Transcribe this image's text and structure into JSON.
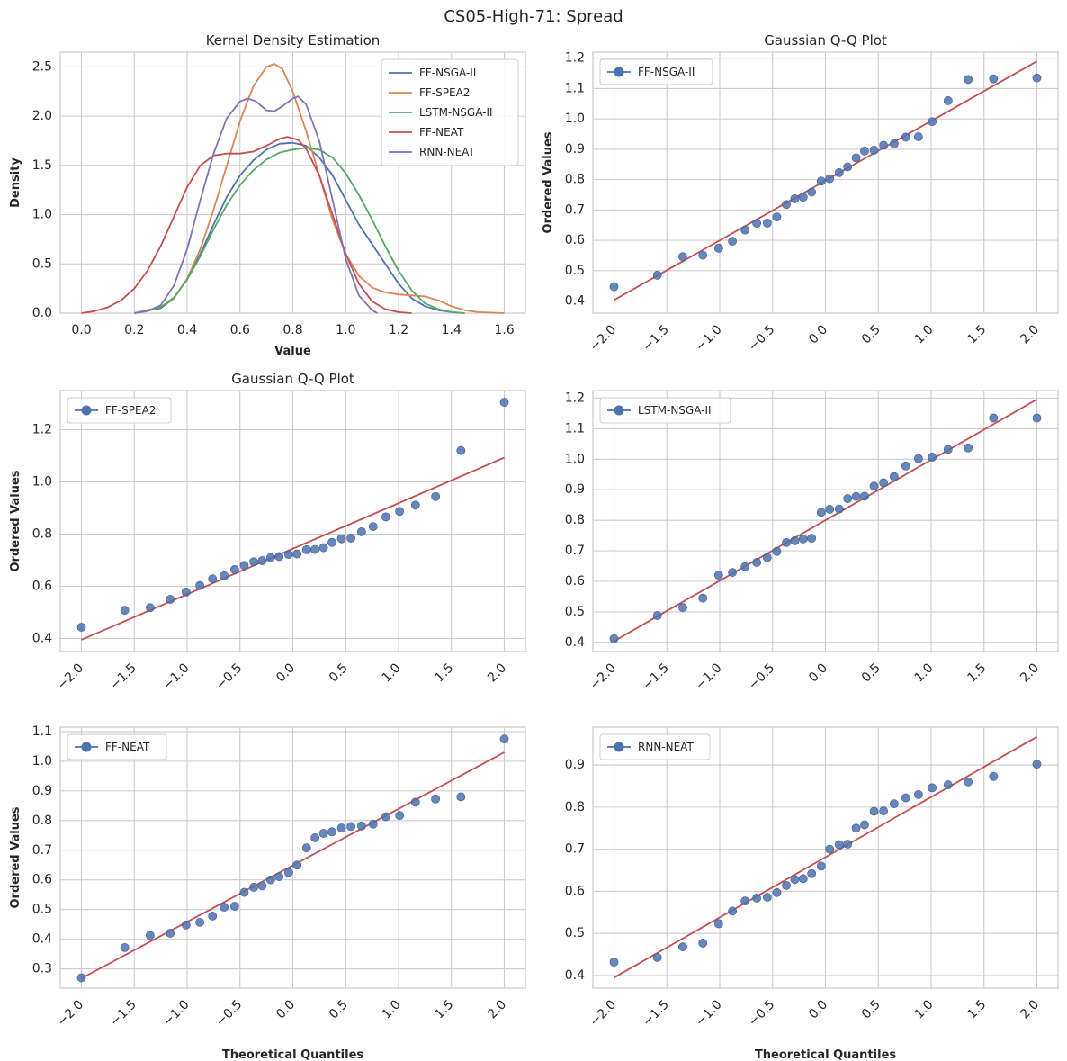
{
  "figure": {
    "title": "CS05-High-71: Spread"
  },
  "colors": {
    "grid": "#cccccc",
    "axis_edge": "#cccccc",
    "text": "#262626",
    "marker": "#4c72b0",
    "marker_edge": "#3d5b8f",
    "fit_line": "#c44e52",
    "legend_border": "#cccccc",
    "background": "#ffffff"
  },
  "chart_data": [
    {
      "id": "kde",
      "type": "line",
      "title": "Kernel Density Estimation",
      "xlabel": "Value",
      "ylabel": "Density",
      "xlim": [
        -0.08,
        1.68
      ],
      "ylim": [
        0,
        2.65
      ],
      "xticks": [
        0.0,
        0.2,
        0.4,
        0.6,
        0.8,
        1.0,
        1.2,
        1.4,
        1.6
      ],
      "xtick_labels": [
        "0.0",
        "0.2",
        "0.4",
        "0.6",
        "0.8",
        "1.0",
        "1.2",
        "1.4",
        "1.6"
      ],
      "yticks": [
        0.0,
        0.5,
        1.0,
        1.5,
        2.0,
        2.5
      ],
      "ytick_labels": [
        "0.0",
        "0.5",
        "1.0",
        "1.5",
        "2.0",
        "2.5"
      ],
      "legend_position": "top-right",
      "series": [
        {
          "name": "FF-NSGA-II",
          "color": "#4c72b0",
          "points": [
            [
              0.2,
              0
            ],
            [
              0.3,
              0.05
            ],
            [
              0.35,
              0.15
            ],
            [
              0.4,
              0.35
            ],
            [
              0.45,
              0.6
            ],
            [
              0.5,
              0.9
            ],
            [
              0.55,
              1.18
            ],
            [
              0.6,
              1.4
            ],
            [
              0.65,
              1.55
            ],
            [
              0.7,
              1.66
            ],
            [
              0.75,
              1.72
            ],
            [
              0.8,
              1.73
            ],
            [
              0.85,
              1.7
            ],
            [
              0.9,
              1.58
            ],
            [
              0.95,
              1.4
            ],
            [
              1.0,
              1.15
            ],
            [
              1.05,
              0.9
            ],
            [
              1.1,
              0.7
            ],
            [
              1.15,
              0.5
            ],
            [
              1.2,
              0.3
            ],
            [
              1.25,
              0.15
            ],
            [
              1.3,
              0.07
            ],
            [
              1.35,
              0.03
            ],
            [
              1.4,
              0.01
            ],
            [
              1.45,
              0
            ]
          ]
        },
        {
          "name": "FF-SPEA2",
          "color": "#dd8452",
          "points": [
            [
              0.2,
              0
            ],
            [
              0.3,
              0.06
            ],
            [
              0.35,
              0.15
            ],
            [
              0.4,
              0.35
            ],
            [
              0.45,
              0.65
            ],
            [
              0.5,
              1.05
            ],
            [
              0.55,
              1.5
            ],
            [
              0.6,
              1.95
            ],
            [
              0.65,
              2.3
            ],
            [
              0.7,
              2.5
            ],
            [
              0.73,
              2.53
            ],
            [
              0.76,
              2.48
            ],
            [
              0.8,
              2.25
            ],
            [
              0.85,
              1.85
            ],
            [
              0.9,
              1.4
            ],
            [
              0.95,
              0.95
            ],
            [
              1.0,
              0.6
            ],
            [
              1.05,
              0.38
            ],
            [
              1.1,
              0.26
            ],
            [
              1.15,
              0.21
            ],
            [
              1.2,
              0.19
            ],
            [
              1.25,
              0.18
            ],
            [
              1.3,
              0.17
            ],
            [
              1.35,
              0.13
            ],
            [
              1.4,
              0.07
            ],
            [
              1.45,
              0.03
            ],
            [
              1.5,
              0.01
            ],
            [
              1.6,
              0
            ]
          ]
        },
        {
          "name": "LSTM-NSGA-II",
          "color": "#55a868",
          "points": [
            [
              0.2,
              0
            ],
            [
              0.3,
              0.06
            ],
            [
              0.35,
              0.16
            ],
            [
              0.4,
              0.34
            ],
            [
              0.45,
              0.58
            ],
            [
              0.5,
              0.85
            ],
            [
              0.55,
              1.1
            ],
            [
              0.6,
              1.3
            ],
            [
              0.65,
              1.45
            ],
            [
              0.7,
              1.56
            ],
            [
              0.75,
              1.63
            ],
            [
              0.8,
              1.66
            ],
            [
              0.85,
              1.68
            ],
            [
              0.9,
              1.66
            ],
            [
              0.95,
              1.58
            ],
            [
              1.0,
              1.42
            ],
            [
              1.05,
              1.2
            ],
            [
              1.1,
              0.95
            ],
            [
              1.15,
              0.68
            ],
            [
              1.2,
              0.43
            ],
            [
              1.25,
              0.23
            ],
            [
              1.3,
              0.1
            ],
            [
              1.35,
              0.04
            ],
            [
              1.4,
              0.01
            ],
            [
              1.45,
              0
            ]
          ]
        },
        {
          "name": "FF-NEAT",
          "color": "#c44e52",
          "points": [
            [
              0.0,
              0
            ],
            [
              0.05,
              0.02
            ],
            [
              0.1,
              0.06
            ],
            [
              0.15,
              0.13
            ],
            [
              0.2,
              0.25
            ],
            [
              0.25,
              0.43
            ],
            [
              0.3,
              0.68
            ],
            [
              0.35,
              0.98
            ],
            [
              0.4,
              1.28
            ],
            [
              0.45,
              1.5
            ],
            [
              0.5,
              1.6
            ],
            [
              0.55,
              1.62
            ],
            [
              0.6,
              1.62
            ],
            [
              0.65,
              1.64
            ],
            [
              0.7,
              1.7
            ],
            [
              0.75,
              1.77
            ],
            [
              0.78,
              1.79
            ],
            [
              0.82,
              1.76
            ],
            [
              0.85,
              1.67
            ],
            [
              0.9,
              1.4
            ],
            [
              0.95,
              1.0
            ],
            [
              1.0,
              0.6
            ],
            [
              1.05,
              0.3
            ],
            [
              1.1,
              0.12
            ],
            [
              1.15,
              0.04
            ],
            [
              1.2,
              0.01
            ],
            [
              1.25,
              0
            ]
          ]
        },
        {
          "name": "RNN-NEAT",
          "color": "#8172b3",
          "points": [
            [
              0.2,
              0
            ],
            [
              0.25,
              0.02
            ],
            [
              0.3,
              0.08
            ],
            [
              0.35,
              0.28
            ],
            [
              0.4,
              0.65
            ],
            [
              0.45,
              1.15
            ],
            [
              0.5,
              1.62
            ],
            [
              0.55,
              1.98
            ],
            [
              0.6,
              2.15
            ],
            [
              0.63,
              2.18
            ],
            [
              0.66,
              2.15
            ],
            [
              0.7,
              2.06
            ],
            [
              0.73,
              2.05
            ],
            [
              0.76,
              2.1
            ],
            [
              0.8,
              2.18
            ],
            [
              0.82,
              2.2
            ],
            [
              0.85,
              2.12
            ],
            [
              0.9,
              1.75
            ],
            [
              0.95,
              1.15
            ],
            [
              1.0,
              0.55
            ],
            [
              1.05,
              0.18
            ],
            [
              1.1,
              0.03
            ],
            [
              1.12,
              0
            ]
          ]
        }
      ]
    },
    {
      "id": "qq-ff-nsga",
      "type": "scatter",
      "title": "Gaussian Q-Q Plot",
      "xlabel": "",
      "ylabel": "Ordered Values",
      "legend_label": "FF-NSGA-II",
      "xlim": [
        -2.2,
        2.2
      ],
      "ylim": [
        0.36,
        1.22
      ],
      "xticks": [
        -2.0,
        -1.5,
        -1.0,
        -0.5,
        0.0,
        0.5,
        1.0,
        1.5,
        2.0
      ],
      "xtick_labels": [
        "−2.0",
        "−1.5",
        "−1.0",
        "−0.5",
        "0.0",
        "0.5",
        "1.0",
        "1.5",
        "2.0"
      ],
      "yticks": [
        0.4,
        0.5,
        0.6,
        0.7,
        0.8,
        0.9,
        1.0,
        1.1,
        1.2
      ],
      "ytick_labels": [
        "0.4",
        "0.5",
        "0.6",
        "0.7",
        "0.8",
        "0.9",
        "1.0",
        "1.1",
        "1.2"
      ],
      "x": [
        -2.0,
        -1.59,
        -1.35,
        -1.16,
        -1.01,
        -0.88,
        -0.76,
        -0.65,
        -0.55,
        -0.46,
        -0.37,
        -0.29,
        -0.21,
        -0.13,
        -0.04,
        0.04,
        0.13,
        0.21,
        0.29,
        0.37,
        0.46,
        0.55,
        0.65,
        0.76,
        0.88,
        1.01,
        1.16,
        1.35,
        1.59,
        2.0
      ],
      "y": [
        0.447,
        0.485,
        0.546,
        0.551,
        0.574,
        0.597,
        0.634,
        0.656,
        0.657,
        0.677,
        0.718,
        0.737,
        0.742,
        0.759,
        0.795,
        0.803,
        0.823,
        0.842,
        0.872,
        0.894,
        0.897,
        0.913,
        0.918,
        0.94,
        0.941,
        0.991,
        1.06,
        1.13,
        1.132,
        1.135
      ],
      "fit": [
        [
          -2.0,
          0.403
        ],
        [
          2.0,
          1.19
        ]
      ]
    },
    {
      "id": "qq-ff-spea2",
      "type": "scatter",
      "title": "Gaussian Q-Q Plot",
      "xlabel": "",
      "ylabel": "Ordered Values",
      "legend_label": "FF-SPEA2",
      "xlim": [
        -2.2,
        2.2
      ],
      "ylim": [
        0.35,
        1.35
      ],
      "xticks": [
        -2.0,
        -1.5,
        -1.0,
        -0.5,
        0.0,
        0.5,
        1.0,
        1.5,
        2.0
      ],
      "xtick_labels": [
        "−2.0",
        "−1.5",
        "−1.0",
        "−0.5",
        "0.0",
        "0.5",
        "1.0",
        "1.5",
        "2.0"
      ],
      "yticks": [
        0.4,
        0.6,
        0.8,
        1.0,
        1.2
      ],
      "ytick_labels": [
        "0.4",
        "0.6",
        "0.8",
        "1.0",
        "1.2"
      ],
      "x": [
        -2.0,
        -1.59,
        -1.35,
        -1.16,
        -1.01,
        -0.88,
        -0.76,
        -0.65,
        -0.55,
        -0.46,
        -0.37,
        -0.29,
        -0.21,
        -0.13,
        -0.04,
        0.04,
        0.13,
        0.21,
        0.29,
        0.37,
        0.46,
        0.55,
        0.65,
        0.76,
        0.88,
        1.01,
        1.16,
        1.35,
        1.59,
        2.0
      ],
      "y": [
        0.443,
        0.508,
        0.518,
        0.55,
        0.578,
        0.603,
        0.629,
        0.64,
        0.664,
        0.68,
        0.694,
        0.698,
        0.71,
        0.714,
        0.722,
        0.724,
        0.74,
        0.741,
        0.748,
        0.768,
        0.782,
        0.785,
        0.809,
        0.829,
        0.866,
        0.887,
        0.911,
        0.944,
        1.12,
        1.305
      ],
      "fit": [
        [
          -2.0,
          0.395
        ],
        [
          2.0,
          1.093
        ]
      ]
    },
    {
      "id": "qq-lstm-nsga",
      "type": "scatter",
      "title": "",
      "xlabel": "",
      "ylabel": "",
      "legend_label": "LSTM-NSGA-II",
      "xlim": [
        -2.2,
        2.2
      ],
      "ylim": [
        0.37,
        1.225
      ],
      "xticks": [
        -2.0,
        -1.5,
        -1.0,
        -0.5,
        0.0,
        0.5,
        1.0,
        1.5,
        2.0
      ],
      "xtick_labels": [
        "−2.0",
        "−1.5",
        "−1.0",
        "−0.5",
        "0.0",
        "0.5",
        "1.0",
        "1.5",
        "2.0"
      ],
      "yticks": [
        0.4,
        0.5,
        0.6,
        0.7,
        0.8,
        0.9,
        1.0,
        1.1,
        1.2
      ],
      "ytick_labels": [
        "0.4",
        "0.5",
        "0.6",
        "0.7",
        "0.8",
        "0.9",
        "1.0",
        "1.1",
        "1.2"
      ],
      "x": [
        -2.0,
        -1.59,
        -1.35,
        -1.16,
        -1.01,
        -0.88,
        -0.76,
        -0.65,
        -0.55,
        -0.46,
        -0.37,
        -0.29,
        -0.21,
        -0.13,
        -0.04,
        0.04,
        0.13,
        0.21,
        0.29,
        0.37,
        0.46,
        0.55,
        0.65,
        0.76,
        0.88,
        1.01,
        1.16,
        1.35,
        1.59,
        2.0
      ],
      "y": [
        0.412,
        0.488,
        0.514,
        0.545,
        0.62,
        0.629,
        0.648,
        0.662,
        0.678,
        0.698,
        0.727,
        0.733,
        0.739,
        0.741,
        0.826,
        0.836,
        0.837,
        0.871,
        0.878,
        0.879,
        0.912,
        0.923,
        0.943,
        0.978,
        1.002,
        1.007,
        1.032,
        1.037,
        1.135,
        1.135
      ],
      "fit": [
        [
          -2.0,
          0.404
        ],
        [
          2.0,
          1.196
        ]
      ]
    },
    {
      "id": "qq-ff-neat",
      "type": "scatter",
      "title": "",
      "xlabel": "Theoretical Quantiles",
      "ylabel": "Ordered Values",
      "legend_label": "FF-NEAT",
      "xlim": [
        -2.2,
        2.2
      ],
      "ylim": [
        0.235,
        1.115
      ],
      "xticks": [
        -2.0,
        -1.5,
        -1.0,
        -0.5,
        0.0,
        0.5,
        1.0,
        1.5,
        2.0
      ],
      "xtick_labels": [
        "−2.0",
        "−1.5",
        "−1.0",
        "−0.5",
        "0.0",
        "0.5",
        "1.0",
        "1.5",
        "2.0"
      ],
      "yticks": [
        0.3,
        0.4,
        0.5,
        0.6,
        0.7,
        0.8,
        0.9,
        1.0,
        1.1
      ],
      "ytick_labels": [
        "0.3",
        "0.4",
        "0.5",
        "0.6",
        "0.7",
        "0.8",
        "0.9",
        "1.0",
        "1.1"
      ],
      "x": [
        -2.0,
        -1.59,
        -1.35,
        -1.16,
        -1.01,
        -0.88,
        -0.76,
        -0.65,
        -0.55,
        -0.46,
        -0.37,
        -0.29,
        -0.21,
        -0.13,
        -0.04,
        0.04,
        0.13,
        0.21,
        0.29,
        0.37,
        0.46,
        0.55,
        0.65,
        0.76,
        0.88,
        1.01,
        1.16,
        1.35,
        1.59,
        2.0
      ],
      "y": [
        0.27,
        0.372,
        0.413,
        0.42,
        0.448,
        0.457,
        0.478,
        0.508,
        0.511,
        0.558,
        0.575,
        0.58,
        0.6,
        0.611,
        0.625,
        0.65,
        0.708,
        0.742,
        0.757,
        0.762,
        0.775,
        0.78,
        0.782,
        0.788,
        0.813,
        0.817,
        0.862,
        0.873,
        0.88,
        1.075
      ],
      "fit": [
        [
          -2.0,
          0.268
        ],
        [
          2.0,
          1.03
        ]
      ]
    },
    {
      "id": "qq-rnn-neat",
      "type": "scatter",
      "title": "",
      "xlabel": "Theoretical Quantiles",
      "ylabel": "",
      "legend_label": "RNN-NEAT",
      "xlim": [
        -2.2,
        2.2
      ],
      "ylim": [
        0.37,
        0.99
      ],
      "xticks": [
        -2.0,
        -1.5,
        -1.0,
        -0.5,
        0.0,
        0.5,
        1.0,
        1.5,
        2.0
      ],
      "xtick_labels": [
        "−2.0",
        "−1.5",
        "−1.0",
        "−0.5",
        "0.0",
        "0.5",
        "1.0",
        "1.5",
        "2.0"
      ],
      "yticks": [
        0.4,
        0.5,
        0.6,
        0.7,
        0.8,
        0.9
      ],
      "ytick_labels": [
        "0.4",
        "0.5",
        "0.6",
        "0.7",
        "0.8",
        "0.9"
      ],
      "x": [
        -2.0,
        -1.59,
        -1.35,
        -1.16,
        -1.01,
        -0.88,
        -0.76,
        -0.65,
        -0.55,
        -0.46,
        -0.37,
        -0.29,
        -0.21,
        -0.13,
        -0.04,
        0.04,
        0.13,
        0.21,
        0.29,
        0.37,
        0.46,
        0.55,
        0.65,
        0.76,
        0.88,
        1.01,
        1.16,
        1.35,
        1.59,
        2.0
      ],
      "y": [
        0.432,
        0.443,
        0.468,
        0.477,
        0.523,
        0.553,
        0.577,
        0.584,
        0.586,
        0.597,
        0.614,
        0.628,
        0.63,
        0.642,
        0.66,
        0.7,
        0.711,
        0.712,
        0.75,
        0.758,
        0.79,
        0.791,
        0.808,
        0.822,
        0.83,
        0.846,
        0.853,
        0.86,
        0.873,
        0.902
      ],
      "fit": [
        [
          -2.0,
          0.395
        ],
        [
          2.0,
          0.967
        ]
      ]
    }
  ]
}
